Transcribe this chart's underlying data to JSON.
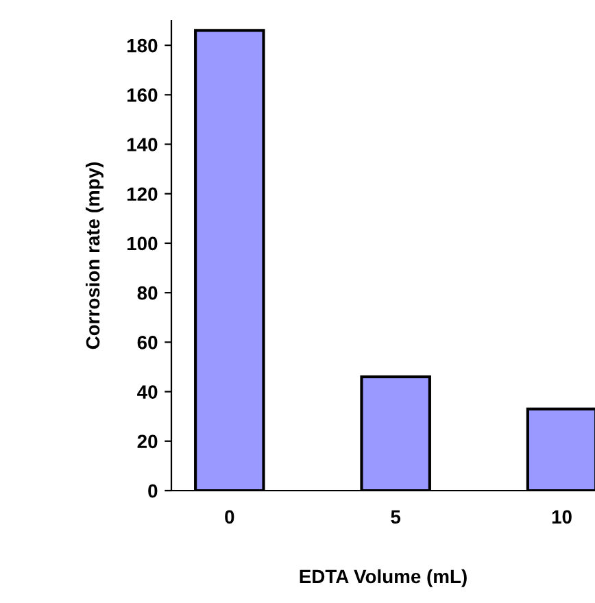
{
  "chart_data": {
    "type": "bar",
    "xlabel": "EDTA Volume (mL)",
    "ylabel": "Corrosion rate (mpy)",
    "categories": [
      "0",
      "5",
      "10"
    ],
    "values": [
      186,
      46,
      33
    ],
    "color": "#9999ff",
    "ylim": [
      0,
      190
    ],
    "yticks": [
      0,
      20,
      40,
      60,
      80,
      100,
      120,
      140,
      160,
      180
    ],
    "grid": false,
    "legend": false
  }
}
